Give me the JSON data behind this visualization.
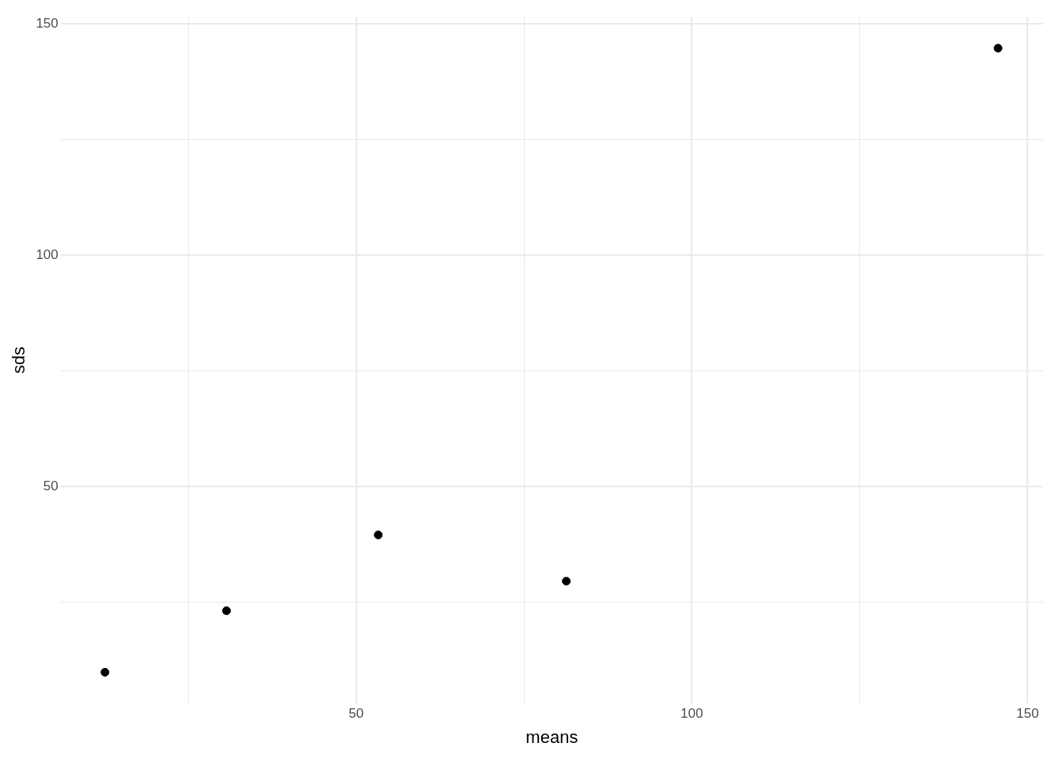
{
  "chart_data": {
    "type": "scatter",
    "xlabel": "means",
    "ylabel": "sds",
    "x": [
      12.6,
      30.7,
      53.3,
      81.3,
      145.6
    ],
    "values": [
      9.8,
      23.1,
      39.5,
      29.5,
      144.8
    ],
    "color": "#000000",
    "marker": "circle",
    "xlim": [
      6,
      152.3
    ],
    "ylim": [
      3,
      151.6
    ],
    "xticks": [
      {
        "value": 25,
        "label": null
      },
      50,
      {
        "value": 75,
        "label": null
      },
      100,
      {
        "value": 125,
        "label": null
      },
      150
    ],
    "yticks": [
      {
        "value": 25,
        "label": null
      },
      50,
      {
        "value": 75,
        "label": null
      },
      100,
      {
        "value": 125,
        "label": null
      },
      150
    ],
    "grid": true,
    "legend": false
  }
}
